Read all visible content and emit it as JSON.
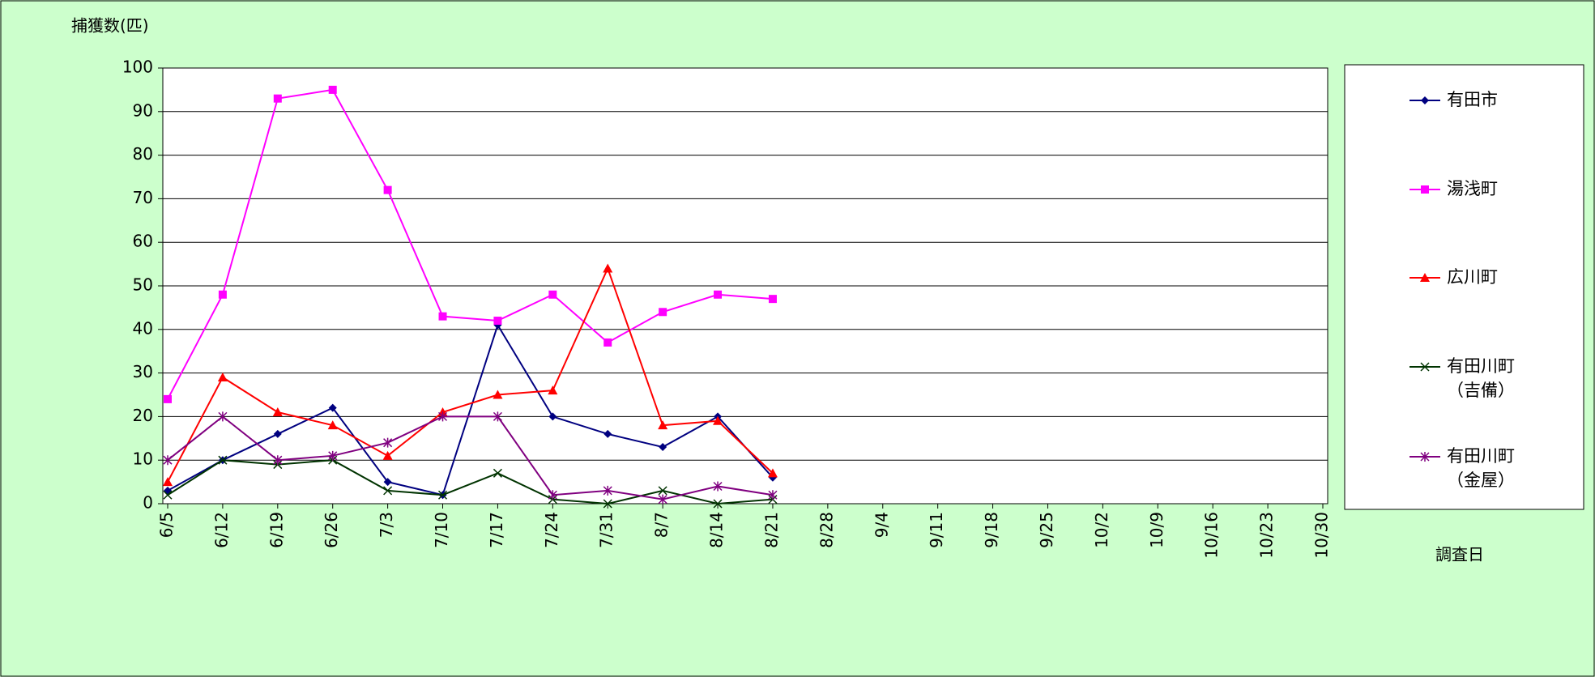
{
  "chart_data": {
    "type": "line",
    "y_label": "捕獲数(匹)",
    "x_label": "調査日",
    "categories": [
      "6/5",
      "6/12",
      "6/19",
      "6/26",
      "7/3",
      "7/10",
      "7/17",
      "7/24",
      "7/31",
      "8/7",
      "8/14",
      "8/21",
      "8/28",
      "9/4",
      "9/11",
      "9/18",
      "9/25",
      "10/2",
      "10/9",
      "10/16",
      "10/23",
      "10/30"
    ],
    "series": [
      {
        "name": "有田市",
        "color": "#000080",
        "marker": "diamond",
        "values": [
          3,
          10,
          16,
          22,
          5,
          2,
          41,
          20,
          16,
          13,
          20,
          6,
          null,
          null,
          null,
          null,
          null,
          null,
          null,
          null,
          null,
          null
        ]
      },
      {
        "name": "湯浅町",
        "color": "#ff00ff",
        "marker": "square",
        "values": [
          24,
          48,
          93,
          95,
          72,
          43,
          42,
          48,
          37,
          44,
          48,
          47,
          null,
          null,
          null,
          null,
          null,
          null,
          null,
          null,
          null,
          null
        ]
      },
      {
        "name": "広川町",
        "color": "#ff0000",
        "marker": "triangle",
        "values": [
          5,
          29,
          21,
          18,
          11,
          21,
          25,
          26,
          54,
          18,
          19,
          7,
          null,
          null,
          null,
          null,
          null,
          null,
          null,
          null,
          null,
          null
        ]
      },
      {
        "name": "有田川町\n（吉備）",
        "color": "#003300",
        "marker": "x",
        "values": [
          2,
          10,
          9,
          10,
          3,
          2,
          7,
          1,
          0,
          3,
          0,
          1,
          null,
          null,
          null,
          null,
          null,
          null,
          null,
          null,
          null,
          null
        ]
      },
      {
        "name": "有田川町\n（金屋）",
        "color": "#800080",
        "marker": "star",
        "values": [
          10,
          20,
          10,
          11,
          14,
          20,
          20,
          2,
          3,
          1,
          4,
          2,
          null,
          null,
          null,
          null,
          null,
          null,
          null,
          null,
          null,
          null
        ]
      }
    ],
    "ylim": [
      0,
      100
    ],
    "yticks": [
      0,
      10,
      20,
      30,
      40,
      50,
      60,
      70,
      80,
      90,
      100
    ],
    "grid": true
  }
}
